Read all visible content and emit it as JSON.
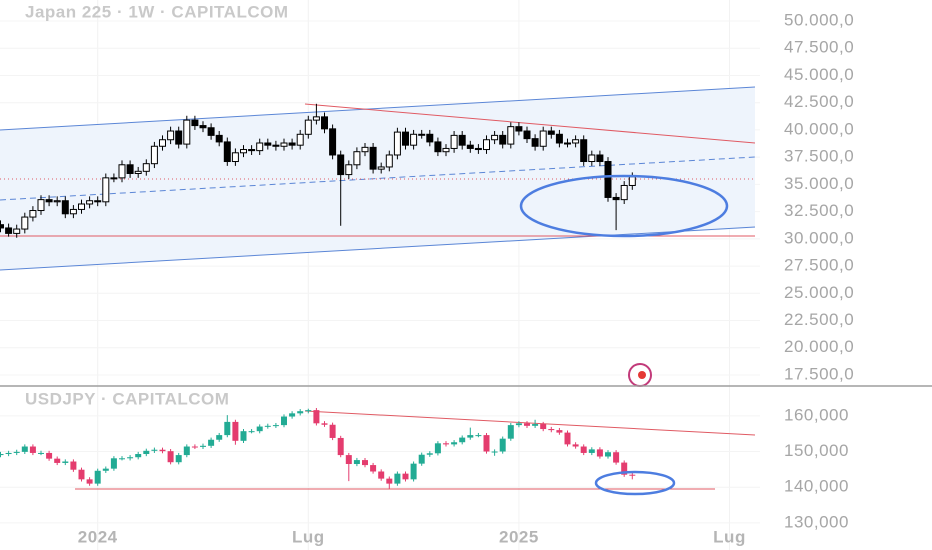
{
  "chart_data": [
    {
      "type": "candlestick",
      "title": "Japan 225 · 1W · CAPITALCOM",
      "up_color": "#ffffff",
      "down_color": "#000000",
      "wick_color": "#000000",
      "ylim": [
        16580,
        51930
      ],
      "yticks": [
        {
          "value": 50000,
          "label": "50.000,0"
        },
        {
          "value": 47500,
          "label": "47.500,0"
        },
        {
          "value": 45000,
          "label": "45.000,0"
        },
        {
          "value": 42500,
          "label": "42.500,0"
        },
        {
          "value": 40000,
          "label": "40.000,0"
        },
        {
          "value": 37500,
          "label": "37.500,0"
        },
        {
          "value": 35000,
          "label": "35.000,0"
        },
        {
          "value": 32500,
          "label": "32.500,0"
        },
        {
          "value": 30000,
          "label": "30.000,0"
        },
        {
          "value": 27500,
          "label": "27.500,0"
        },
        {
          "value": 25000,
          "label": "25.000,0"
        },
        {
          "value": 22500,
          "label": "22.500,0"
        },
        {
          "value": 20000,
          "label": "20.000,0"
        },
        {
          "value": 17500,
          "label": "17.500,0"
        }
      ],
      "open": [
        31300,
        31000,
        30500,
        30900,
        32000,
        32600,
        33600,
        33400,
        33500,
        32300,
        32700,
        33200,
        33500,
        33400,
        35600,
        35600,
        36800,
        36000,
        36200,
        36900,
        38500,
        39100,
        39900,
        38700,
        40900,
        40400,
        40200,
        39500,
        38900,
        37100,
        37900,
        38200,
        38100,
        38800,
        38600,
        38500,
        38800,
        38600,
        39600,
        40900,
        41200,
        40100,
        37700,
        35900,
        36800,
        38000,
        38400,
        36400,
        36600,
        37700,
        39800,
        38600,
        39600,
        39600,
        38900,
        38000,
        38300,
        39500,
        38600,
        38300,
        38200,
        39100,
        39500,
        38700,
        40300,
        39900,
        39200,
        38500,
        39900,
        39600,
        38800,
        38800,
        39100,
        37100,
        37700,
        37100,
        33800,
        33600,
        34900
      ],
      "high": [
        31700,
        31400,
        31300,
        32400,
        33000,
        34000,
        34000,
        33900,
        33900,
        33100,
        33600,
        33900,
        33900,
        36000,
        36000,
        37200,
        37200,
        36600,
        37300,
        38900,
        39500,
        40300,
        40300,
        41300,
        41300,
        40800,
        40600,
        39900,
        39300,
        38300,
        38600,
        38600,
        39200,
        39200,
        39000,
        39200,
        39200,
        40000,
        41300,
        42400,
        41600,
        40500,
        38100,
        37200,
        38400,
        38800,
        38800,
        37000,
        38100,
        40200,
        40200,
        40000,
        40000,
        40000,
        39300,
        38700,
        39900,
        39900,
        39000,
        38700,
        39500,
        39900,
        39900,
        40700,
        40700,
        40300,
        39600,
        40300,
        40300,
        40000,
        39200,
        39500,
        39500,
        38100,
        38100,
        37500,
        34200,
        35300,
        36100
      ],
      "low": [
        30600,
        30200,
        30100,
        30500,
        31600,
        32200,
        33000,
        33000,
        31900,
        31900,
        32300,
        32800,
        33000,
        33000,
        35200,
        35200,
        35600,
        35600,
        35800,
        36500,
        38100,
        38700,
        38300,
        38300,
        40000,
        39800,
        39100,
        38500,
        36700,
        36700,
        37500,
        37700,
        37700,
        38200,
        38100,
        38100,
        38200,
        38200,
        39200,
        40500,
        39700,
        37300,
        31200,
        35500,
        36400,
        37600,
        36000,
        36000,
        36200,
        37300,
        38200,
        38200,
        39200,
        38500,
        37600,
        37600,
        37900,
        38200,
        37900,
        37800,
        37800,
        38700,
        38300,
        38300,
        39500,
        38800,
        38100,
        38100,
        39200,
        38400,
        38400,
        38400,
        36700,
        36700,
        36700,
        33400,
        30800,
        33200,
        34500
      ],
      "close": [
        31000,
        30500,
        30900,
        32000,
        32600,
        33600,
        33400,
        33500,
        32300,
        32700,
        33200,
        33500,
        33400,
        35600,
        35600,
        36800,
        36000,
        36200,
        36900,
        38500,
        39100,
        39900,
        38700,
        40900,
        40400,
        40200,
        39500,
        38900,
        37100,
        37900,
        38200,
        38100,
        38800,
        38600,
        38500,
        38800,
        38600,
        39600,
        40900,
        41200,
        40100,
        37700,
        35900,
        36800,
        38000,
        38400,
        36400,
        36600,
        37700,
        39800,
        38600,
        39600,
        39600,
        38900,
        38000,
        38300,
        39500,
        38600,
        38300,
        38200,
        39100,
        39500,
        38700,
        40300,
        39900,
        39200,
        38500,
        39900,
        39600,
        38800,
        38800,
        39100,
        37100,
        37700,
        37100,
        33800,
        33600,
        34900,
        35700
      ]
    },
    {
      "type": "candlestick",
      "title": "USDJPY · CAPITALCOM",
      "up_color": "#22ab94",
      "down_color": "#e43c6e",
      "ylim": [
        122.4,
        167.8
      ],
      "yticks": [
        {
          "value": 160,
          "label": "160,000"
        },
        {
          "value": 150,
          "label": "150,000"
        },
        {
          "value": 140,
          "label": "140,000"
        },
        {
          "value": 130,
          "label": "130,000"
        }
      ],
      "categories": [
        null,
        null,
        null,
        null,
        null,
        null,
        null,
        null,
        null,
        null,
        null,
        null,
        "2024",
        null,
        null,
        null,
        null,
        null,
        null,
        null,
        null,
        null,
        null,
        null,
        null,
        null,
        null,
        null,
        null,
        null,
        null,
        null,
        null,
        null,
        null,
        null,
        null,
        null,
        "Lug",
        null,
        null,
        null,
        null,
        null,
        null,
        null,
        null,
        null,
        null,
        null,
        null,
        null,
        null,
        null,
        null,
        null,
        null,
        null,
        null,
        null,
        null,
        null,
        null,
        null,
        "2025",
        null,
        null,
        null,
        null,
        null,
        null,
        null,
        null,
        null,
        null,
        null,
        null,
        null,
        null,
        null,
        null,
        null,
        null,
        null,
        null,
        null,
        null,
        null,
        null,
        null,
        "Lug",
        null
      ],
      "open": [
        149.0,
        149.3,
        149.6,
        149.9,
        151.4,
        149.6,
        149.6,
        148.0,
        146.8,
        147.2,
        144.9,
        142.2,
        141.0,
        144.6,
        145.2,
        148.1,
        148.1,
        148.4,
        149.3,
        150.2,
        150.5,
        150.1,
        147.0,
        149.0,
        151.4,
        151.3,
        151.6,
        153.3,
        154.6,
        158.3,
        153.0,
        155.7,
        155.7,
        157.0,
        157.2,
        157.4,
        159.8,
        160.7,
        161.3,
        161.6,
        157.9,
        157.5,
        153.8,
        149.0,
        146.5,
        147.6,
        146.2,
        144.4,
        142.4,
        141.0,
        143.8,
        142.2,
        146.6,
        149.1,
        149.5,
        152.3,
        152.0,
        152.6,
        153.9,
        154.6,
        154.6,
        150.0,
        150.0,
        153.6,
        157.4,
        157.9,
        157.2,
        157.7,
        156.3,
        156.0,
        155.3,
        152.0,
        151.4,
        149.6,
        150.6,
        148.6,
        149.8,
        146.9,
        143.5,
        null,
        null,
        null,
        null,
        null,
        null,
        null,
        null,
        null,
        null,
        null,
        null,
        null
      ],
      "high": [
        149.9,
        150.2,
        150.5,
        152.0,
        152.0,
        150.2,
        150.2,
        148.6,
        147.8,
        147.8,
        145.5,
        142.8,
        145.2,
        145.8,
        148.7,
        148.7,
        149.0,
        149.9,
        150.8,
        151.1,
        151.1,
        150.7,
        149.6,
        152.0,
        152.0,
        152.2,
        153.9,
        155.2,
        160.2,
        158.9,
        156.3,
        156.3,
        157.6,
        157.8,
        158.0,
        160.4,
        161.3,
        161.9,
        162.0,
        162.2,
        158.5,
        158.1,
        154.4,
        149.6,
        148.2,
        148.2,
        146.8,
        145.0,
        143.0,
        144.4,
        144.4,
        147.2,
        149.7,
        150.1,
        152.9,
        152.9,
        153.2,
        154.5,
        156.7,
        155.2,
        155.2,
        150.6,
        154.2,
        158.0,
        158.5,
        158.5,
        158.9,
        158.3,
        156.9,
        156.6,
        155.9,
        152.6,
        152.0,
        151.2,
        151.2,
        150.4,
        150.4,
        147.5,
        144.1,
        null,
        null,
        null,
        null,
        null,
        null,
        null,
        null,
        null,
        null,
        null,
        null,
        null
      ],
      "low": [
        148.4,
        148.7,
        149.0,
        149.3,
        149.0,
        149.0,
        147.4,
        146.2,
        146.2,
        144.3,
        141.6,
        140.4,
        140.4,
        144.0,
        144.6,
        147.5,
        147.5,
        147.8,
        148.7,
        149.6,
        149.5,
        146.4,
        146.4,
        148.4,
        150.7,
        150.7,
        151.0,
        152.7,
        154.0,
        151.9,
        152.4,
        155.1,
        155.1,
        156.4,
        156.6,
        156.8,
        159.2,
        160.1,
        160.7,
        157.3,
        156.9,
        153.2,
        148.4,
        141.7,
        145.9,
        145.6,
        143.8,
        141.8,
        139.6,
        140.4,
        141.6,
        141.6,
        146.0,
        148.5,
        148.9,
        151.4,
        151.4,
        152.0,
        153.3,
        154.0,
        149.4,
        148.8,
        149.4,
        153.0,
        156.8,
        156.6,
        156.6,
        155.7,
        155.4,
        154.7,
        151.4,
        150.8,
        149.0,
        149.0,
        148.0,
        148.0,
        146.3,
        142.9,
        142.2,
        null,
        null,
        null,
        null,
        null,
        null,
        null,
        null,
        null,
        null,
        null,
        null,
        null
      ],
      "close": [
        149.3,
        149.6,
        149.9,
        151.4,
        149.6,
        149.6,
        148.0,
        146.8,
        147.2,
        144.9,
        142.2,
        141.0,
        144.6,
        145.2,
        148.1,
        148.1,
        148.4,
        149.3,
        150.2,
        150.5,
        150.1,
        147.0,
        149.0,
        151.4,
        151.3,
        151.6,
        153.3,
        154.6,
        158.3,
        153.0,
        155.7,
        155.7,
        157.0,
        157.2,
        157.4,
        159.8,
        160.7,
        161.3,
        161.6,
        157.9,
        157.5,
        153.8,
        149.0,
        146.5,
        147.6,
        146.2,
        144.4,
        142.4,
        141.0,
        143.8,
        142.2,
        146.6,
        149.1,
        149.5,
        152.3,
        152.0,
        152.6,
        153.9,
        154.6,
        154.6,
        150.0,
        150.0,
        153.6,
        157.4,
        157.9,
        157.2,
        157.7,
        156.3,
        156.0,
        155.3,
        152.0,
        151.4,
        149.6,
        150.6,
        148.6,
        149.8,
        146.9,
        143.5,
        143.4,
        null,
        null,
        null,
        null,
        null,
        null,
        null,
        null,
        null,
        null,
        null,
        null,
        null
      ]
    }
  ]
}
